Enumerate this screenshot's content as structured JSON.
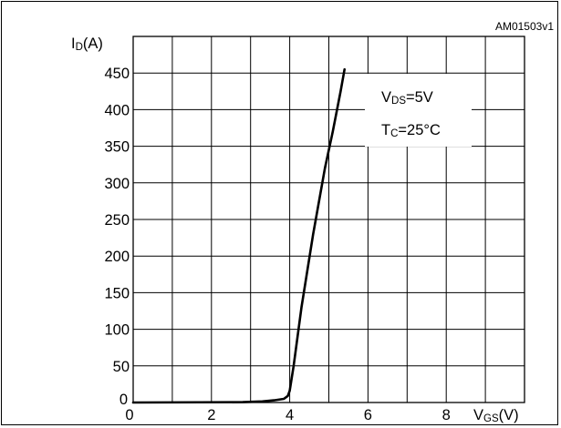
{
  "figure_id": "AM01503v1",
  "chart_data": {
    "type": "line",
    "ylabel": {
      "main": "I",
      "sub": "D",
      "unit": "(A)"
    },
    "xlabel": {
      "main": "V",
      "sub": "GS",
      "unit": "(V)"
    },
    "xlim": [
      0,
      10
    ],
    "ylim": [
      0,
      500
    ],
    "x_ticks": [
      {
        "value": 0,
        "label": "0"
      },
      {
        "value": 2,
        "label": "2"
      },
      {
        "value": 4,
        "label": "4"
      },
      {
        "value": 6,
        "label": "6"
      },
      {
        "value": 8,
        "label": "8"
      }
    ],
    "y_ticks": [
      {
        "value": 0,
        "label": "0"
      },
      {
        "value": 50,
        "label": "50"
      },
      {
        "value": 100,
        "label": "100"
      },
      {
        "value": 150,
        "label": "150"
      },
      {
        "value": 200,
        "label": "200"
      },
      {
        "value": 250,
        "label": "250"
      },
      {
        "value": 300,
        "label": "300"
      },
      {
        "value": 350,
        "label": "350"
      },
      {
        "value": 400,
        "label": "400"
      },
      {
        "value": 450,
        "label": "450"
      }
    ],
    "grid": true,
    "conditions": [
      {
        "main": "V",
        "sub": "DS",
        "rest": "=5V"
      },
      {
        "main": "T",
        "sub": "C",
        "rest": "=25°C"
      }
    ],
    "series": [
      {
        "x": [
          0,
          2.8,
          3.3,
          3.6,
          3.85,
          3.95,
          4.0,
          4.1,
          4.3,
          4.6,
          4.9,
          5.1,
          5.3,
          5.4
        ],
        "y": [
          0,
          0.5,
          1.5,
          3,
          5,
          9,
          16,
          50,
          130,
          230,
          320,
          370,
          425,
          455
        ]
      }
    ]
  }
}
